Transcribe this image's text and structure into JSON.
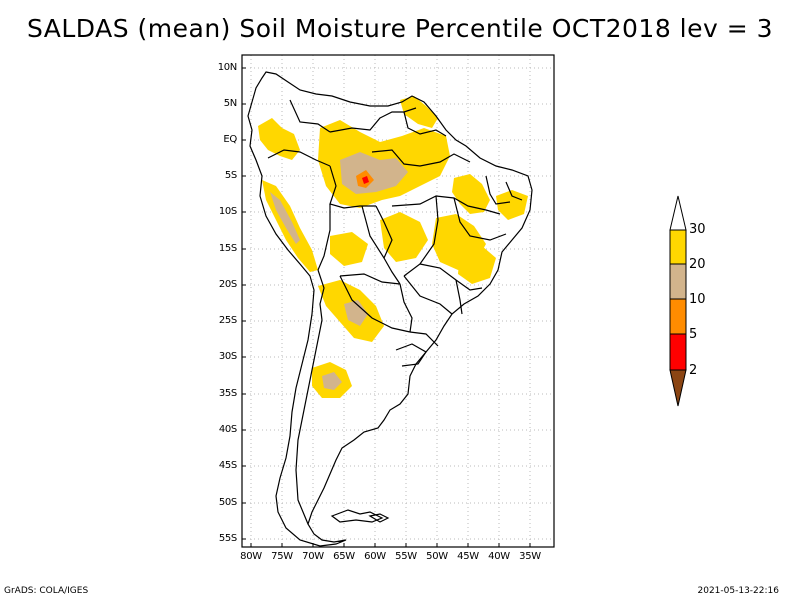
{
  "title": "SALDAS (mean) Soil Moisture Percentile OCT2018 lev = 3",
  "lat_labels": [
    "10N",
    "5N",
    "EQ",
    "5S",
    "10S",
    "15S",
    "20S",
    "25S",
    "30S",
    "35S",
    "40S",
    "45S",
    "50S",
    "55S"
  ],
  "lon_labels": [
    "80W",
    "75W",
    "70W",
    "65W",
    "60W",
    "55W",
    "50W",
    "45W",
    "40W",
    "35W"
  ],
  "colorbar": {
    "labels": [
      "30",
      "20",
      "10",
      "5",
      "2"
    ],
    "colors": [
      "#ffffff",
      "#ffd700",
      "#d2b48c",
      "#ff8c00",
      "#ff0000",
      "#8b4513"
    ]
  },
  "footer": {
    "left": "GrADS: COLA/IGES",
    "right": "2021-05-13-22:16"
  }
}
